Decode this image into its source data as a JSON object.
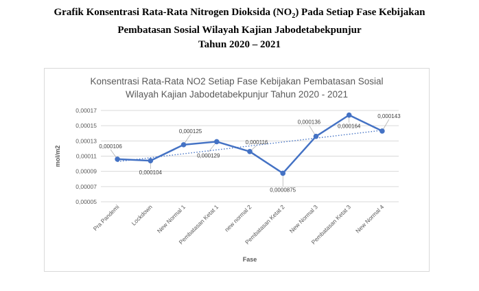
{
  "document": {
    "title_line1_pre": "Grafik Konsentrasi Rata-Rata Nitrogen Dioksida (NO",
    "title_line1_sub": "2",
    "title_line1_post": ") Pada Setiap Fase Kebijakan",
    "title_line2": "Pembatasan Sosial Wilayah Kajian Jabodetabekpunjur",
    "title_line3": "Tahun 2020 – 2021"
  },
  "chart_data": {
    "type": "line",
    "title_line1": "Konsentrasi Rata-Rata NO2 Setiap Fase Kebijakan Pembatasan Sosial",
    "title_line2": "Wilayah Kajian Jabodetabekpunjur Tahun 2020 - 2021",
    "xlabel": "Fase",
    "ylabel": "mol/m2",
    "ylim": [
      5e-05,
      0.00017
    ],
    "yticks": [
      5e-05,
      7e-05,
      9e-05,
      0.00011,
      0.00013,
      0.00015,
      0.00017
    ],
    "ytick_labels": [
      "0,00005",
      "0,00007",
      "0,00009",
      "0,00011",
      "0,00013",
      "0,00015",
      "0,00017"
    ],
    "categories": [
      "Pra Pandemi",
      "Lockdown",
      "New Normal 1",
      "Pembatasan Ketat 1",
      "new normal 2",
      "Pembatasan Ketat 2",
      "New Normal 3",
      "Pembatasan Ketat 3",
      "New Normal 4"
    ],
    "series": [
      {
        "values": [
          0.000106,
          0.000104,
          0.000125,
          0.000129,
          0.000116,
          8.75e-05,
          0.000136,
          0.000164,
          0.000143
        ],
        "data_labels": [
          "0,000106",
          "0,000104",
          "0,000125",
          "0,000129",
          "0,000116",
          "0,0000875",
          "0,000136",
          "0,000164",
          "0,000143"
        ],
        "color": "#4472c4"
      }
    ],
    "trendline": {
      "type": "linear",
      "style": "dotted",
      "color": "#4472c4"
    },
    "grid": true,
    "legend": false
  }
}
